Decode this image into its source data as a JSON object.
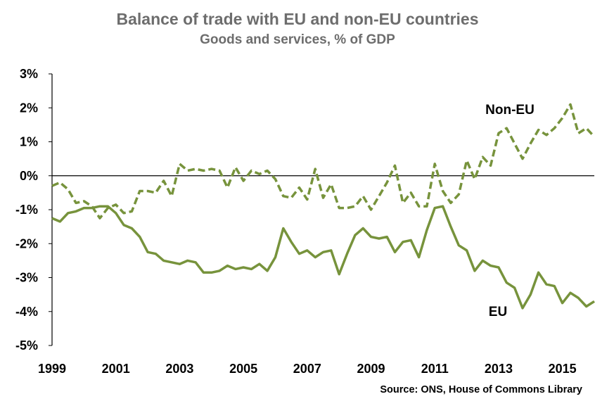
{
  "chart_data": {
    "type": "line",
    "title": "Balance of trade with EU and non-EU countries",
    "subtitle": "Goods and services, % of GDP",
    "source": "Source: ONS, House of Commons Library",
    "xlabel": "",
    "ylabel": "",
    "x_start": 1999.0,
    "x_step": 0.25,
    "xlim": [
      1999,
      2016
    ],
    "ylim": [
      -5,
      3
    ],
    "x_ticks": [
      "1999",
      "2001",
      "2003",
      "2005",
      "2007",
      "2009",
      "2011",
      "2013",
      "2015"
    ],
    "y_ticks": [
      "3%",
      "2%",
      "1%",
      "0%",
      "-1%",
      "-2%",
      "-3%",
      "-4%",
      "-5%"
    ],
    "grid": false,
    "legend": "direct labels on lines",
    "series": [
      {
        "name": "Non-EU",
        "color": "#77933c",
        "style": "dashed",
        "values": [
          -0.3,
          -0.2,
          -0.4,
          -0.8,
          -0.75,
          -0.9,
          -1.25,
          -0.95,
          -0.85,
          -1.1,
          -1.05,
          -0.45,
          -0.45,
          -0.5,
          -0.15,
          -0.6,
          0.35,
          0.15,
          0.2,
          0.15,
          0.2,
          0.15,
          -0.35,
          0.25,
          -0.15,
          0.15,
          0.05,
          0.15,
          -0.1,
          -0.6,
          -0.65,
          -0.35,
          -0.7,
          0.2,
          -0.65,
          -0.25,
          -0.95,
          -0.95,
          -0.9,
          -0.6,
          -1.0,
          -0.6,
          -0.2,
          0.3,
          -0.8,
          -0.5,
          -0.9,
          -0.9,
          0.35,
          -0.45,
          -0.8,
          -0.55,
          0.45,
          -0.1,
          0.55,
          0.3,
          1.25,
          1.4,
          0.95,
          0.5,
          0.95,
          1.35,
          1.2,
          1.4,
          1.7,
          2.1,
          1.25,
          1.4,
          1.15
        ]
      },
      {
        "name": "EU",
        "color": "#77933c",
        "style": "solid",
        "values": [
          -1.25,
          -1.35,
          -1.1,
          -1.05,
          -0.95,
          -0.95,
          -0.9,
          -0.9,
          -1.1,
          -1.45,
          -1.55,
          -1.8,
          -2.25,
          -2.3,
          -2.5,
          -2.55,
          -2.6,
          -2.5,
          -2.55,
          -2.85,
          -2.85,
          -2.8,
          -2.65,
          -2.75,
          -2.7,
          -2.75,
          -2.6,
          -2.8,
          -2.4,
          -1.55,
          -1.95,
          -2.3,
          -2.2,
          -2.4,
          -2.25,
          -2.2,
          -2.9,
          -2.3,
          -1.75,
          -1.55,
          -1.8,
          -1.85,
          -1.8,
          -2.25,
          -1.95,
          -1.9,
          -2.4,
          -1.6,
          -0.95,
          -0.9,
          -1.5,
          -2.05,
          -2.2,
          -2.8,
          -2.5,
          -2.65,
          -2.7,
          -3.15,
          -3.3,
          -3.9,
          -3.5,
          -2.85,
          -3.2,
          -3.25,
          -3.75,
          -3.45,
          -3.6,
          -3.85,
          -3.7
        ]
      }
    ],
    "annotations": [
      {
        "text": "Non-EU",
        "series": "Non-EU"
      },
      {
        "text": "EU",
        "series": "EU"
      }
    ]
  }
}
